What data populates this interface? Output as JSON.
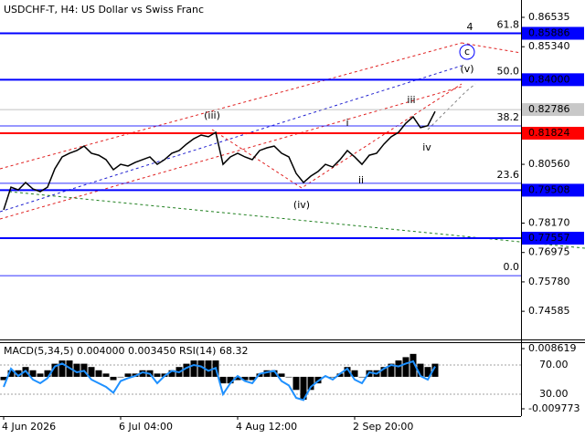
{
  "chart_data": [
    {
      "type": "line",
      "title": "USDCHF-T, H4:  US Dollar vs Swiss Franc",
      "categories": [
        "4 Jun 2026",
        null,
        null,
        null,
        null,
        null,
        null,
        null,
        null,
        null,
        null,
        null,
        null,
        null,
        null,
        null,
        "6 Jul 04:00",
        null,
        null,
        null,
        null,
        null,
        null,
        null,
        null,
        null,
        null,
        null,
        null,
        null,
        null,
        null,
        "4 Aug 12:00",
        null,
        null,
        null,
        null,
        null,
        null,
        null,
        null,
        null,
        null,
        null,
        null,
        null,
        null,
        null,
        "2 Sep 20:00",
        null,
        null,
        null,
        null,
        null,
        null,
        null,
        null,
        null,
        null,
        null
      ],
      "color": "#000000",
      "values": [
        0.7871,
        0.7963,
        0.7952,
        0.7982,
        0.7956,
        0.7945,
        0.7963,
        0.8038,
        0.8086,
        0.8101,
        0.8112,
        0.813,
        0.8101,
        0.8093,
        0.8075,
        0.8034,
        0.8056,
        0.8049,
        0.8064,
        0.8075,
        0.8086,
        0.8056,
        0.8075,
        0.8101,
        0.8112,
        0.8138,
        0.816,
        0.8175,
        0.8168,
        0.8186,
        0.8056,
        0.8086,
        0.8101,
        0.8086,
        0.8075,
        0.8112,
        0.8123,
        0.813,
        0.8101,
        0.8086,
        0.8019,
        0.7982,
        0.8008,
        0.8027,
        0.8056,
        0.8045,
        0.8075,
        0.8112,
        0.8086,
        0.8056,
        0.8093,
        0.8101,
        0.8138,
        0.8168,
        0.8186,
        0.8223,
        0.8249,
        0.8205,
        0.8213,
        0.8271
      ],
      "ylim": [
        0.7344,
        0.8724
      ],
      "yticks": [
        0.86535,
        {
          "value": 0.8534,
          "label": "0.85340"
        },
        {
          "value": 0.8056,
          "label": "0.80560"
        },
        {
          "value": 0.7817,
          "label": "0.78170"
        },
        0.76975,
        {
          "value": 0.7578,
          "label": "0.75780"
        },
        0.74585
      ],
      "levels": [
        {
          "value": 0.85886,
          "color": "#0000ff"
        },
        {
          "value": 0.84,
          "label": "0.84000",
          "color": "#0000ff"
        },
        {
          "value": 0.81824,
          "color": "#ff0000"
        },
        {
          "value": 0.79508,
          "color": "#0000ff"
        },
        {
          "value": 0.77557,
          "color": "#0000ff"
        }
      ],
      "current_price": 0.82786,
      "fibonacci": [
        {
          "value": 61.8,
          "label": "61.8",
          "price": 0.85886
        },
        {
          "value": 50,
          "label": "50.0",
          "price": 0.84
        },
        {
          "value": 38.2,
          "label": "38.2",
          "price": 0.8212
        },
        {
          "value": 23.6,
          "label": "23.6",
          "price": 0.7979
        },
        {
          "value": 0,
          "label": "0.0",
          "price": 0.7603
        }
      ],
      "annotations": [
        {
          "text": "(iii)",
          "color": "#e02020"
        },
        {
          "text": "(iv)",
          "color": "#e02020"
        },
        {
          "text": "(v)",
          "color": "#e02020"
        },
        {
          "text": "i",
          "color": "#808080"
        },
        {
          "text": "ii",
          "color": "#808080"
        },
        {
          "text": "iii",
          "color": "#808080"
        },
        {
          "text": "iv",
          "color": "#808080"
        },
        {
          "text": "4",
          "color": "#e04040"
        },
        {
          "text": "c",
          "color": "#0000ff"
        }
      ]
    },
    {
      "type": "bar",
      "title": "MACD(5,34,5) 0.004000 0.003450 RSI(14) 68.32",
      "series": [
        {
          "type": "bar",
          "color": "#000000",
          "values": [
            -0.001,
            0.002,
            0.002,
            0.003,
            0.002,
            0.001,
            0.002,
            0.004,
            0.005,
            0.005,
            0.004,
            0.004,
            0.003,
            0.002,
            0.001,
            -0.001,
            0,
            0.001,
            0.001,
            0.002,
            0.002,
            0.001,
            0.001,
            0.002,
            0.003,
            0.004,
            0.005,
            0.005,
            0.005,
            0.005,
            -0.002,
            -0.002,
            -0.001,
            -0.001,
            -0.001,
            0.001,
            0.002,
            0.002,
            0.001,
            0,
            -0.004,
            -0.007,
            -0.004,
            -0.002,
            0,
            0,
            0.001,
            0.003,
            0.002,
            0,
            0.002,
            0.002,
            0.003,
            0.004,
            0.005,
            0.006,
            0.007,
            0.004,
            0.003,
            0.004
          ]
        },
        {
          "type": "line",
          "axis": "y2",
          "color": "#1e90ff",
          "values": [
            40,
            65,
            55,
            62,
            50,
            45,
            52,
            68,
            72,
            66,
            60,
            62,
            50,
            45,
            40,
            32,
            48,
            52,
            55,
            60,
            58,
            45,
            55,
            62,
            60,
            66,
            70,
            68,
            62,
            66,
            30,
            45,
            55,
            48,
            45,
            58,
            60,
            62,
            48,
            42,
            25,
            22,
            40,
            48,
            55,
            50,
            58,
            65,
            50,
            45,
            60,
            58,
            65,
            70,
            68,
            72,
            75,
            55,
            50,
            68
          ]
        }
      ],
      "ylim": [
        -0.012,
        0.0103
      ],
      "yticks": [
        0.008619,
        -0.009773
      ],
      "y2lim": [
        0,
        100
      ],
      "y2ticks": [
        {
          "value": 70,
          "label": "70.00"
        },
        {
          "value": 30,
          "label": "30.00"
        }
      ]
    }
  ]
}
